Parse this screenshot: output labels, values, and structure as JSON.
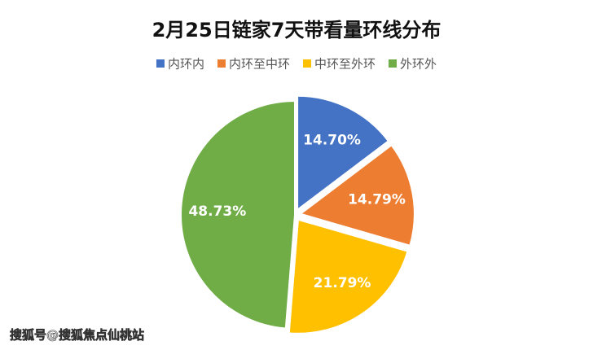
{
  "chart_data": {
    "type": "pie",
    "title": "2月25日链家7天带看量环线分布",
    "categories": [
      "内环内",
      "内环至中环",
      "中环至外环",
      "外环外"
    ],
    "values": [
      14.7,
      14.79,
      21.79,
      48.73
    ],
    "value_labels": [
      "14.70%",
      "14.79%",
      "21.79%",
      "48.73%"
    ],
    "colors": [
      "#4472c4",
      "#ed7d31",
      "#ffc000",
      "#70ad47"
    ],
    "legend": "top"
  },
  "watermark": "搜狐号@搜狐焦点仙桃站"
}
